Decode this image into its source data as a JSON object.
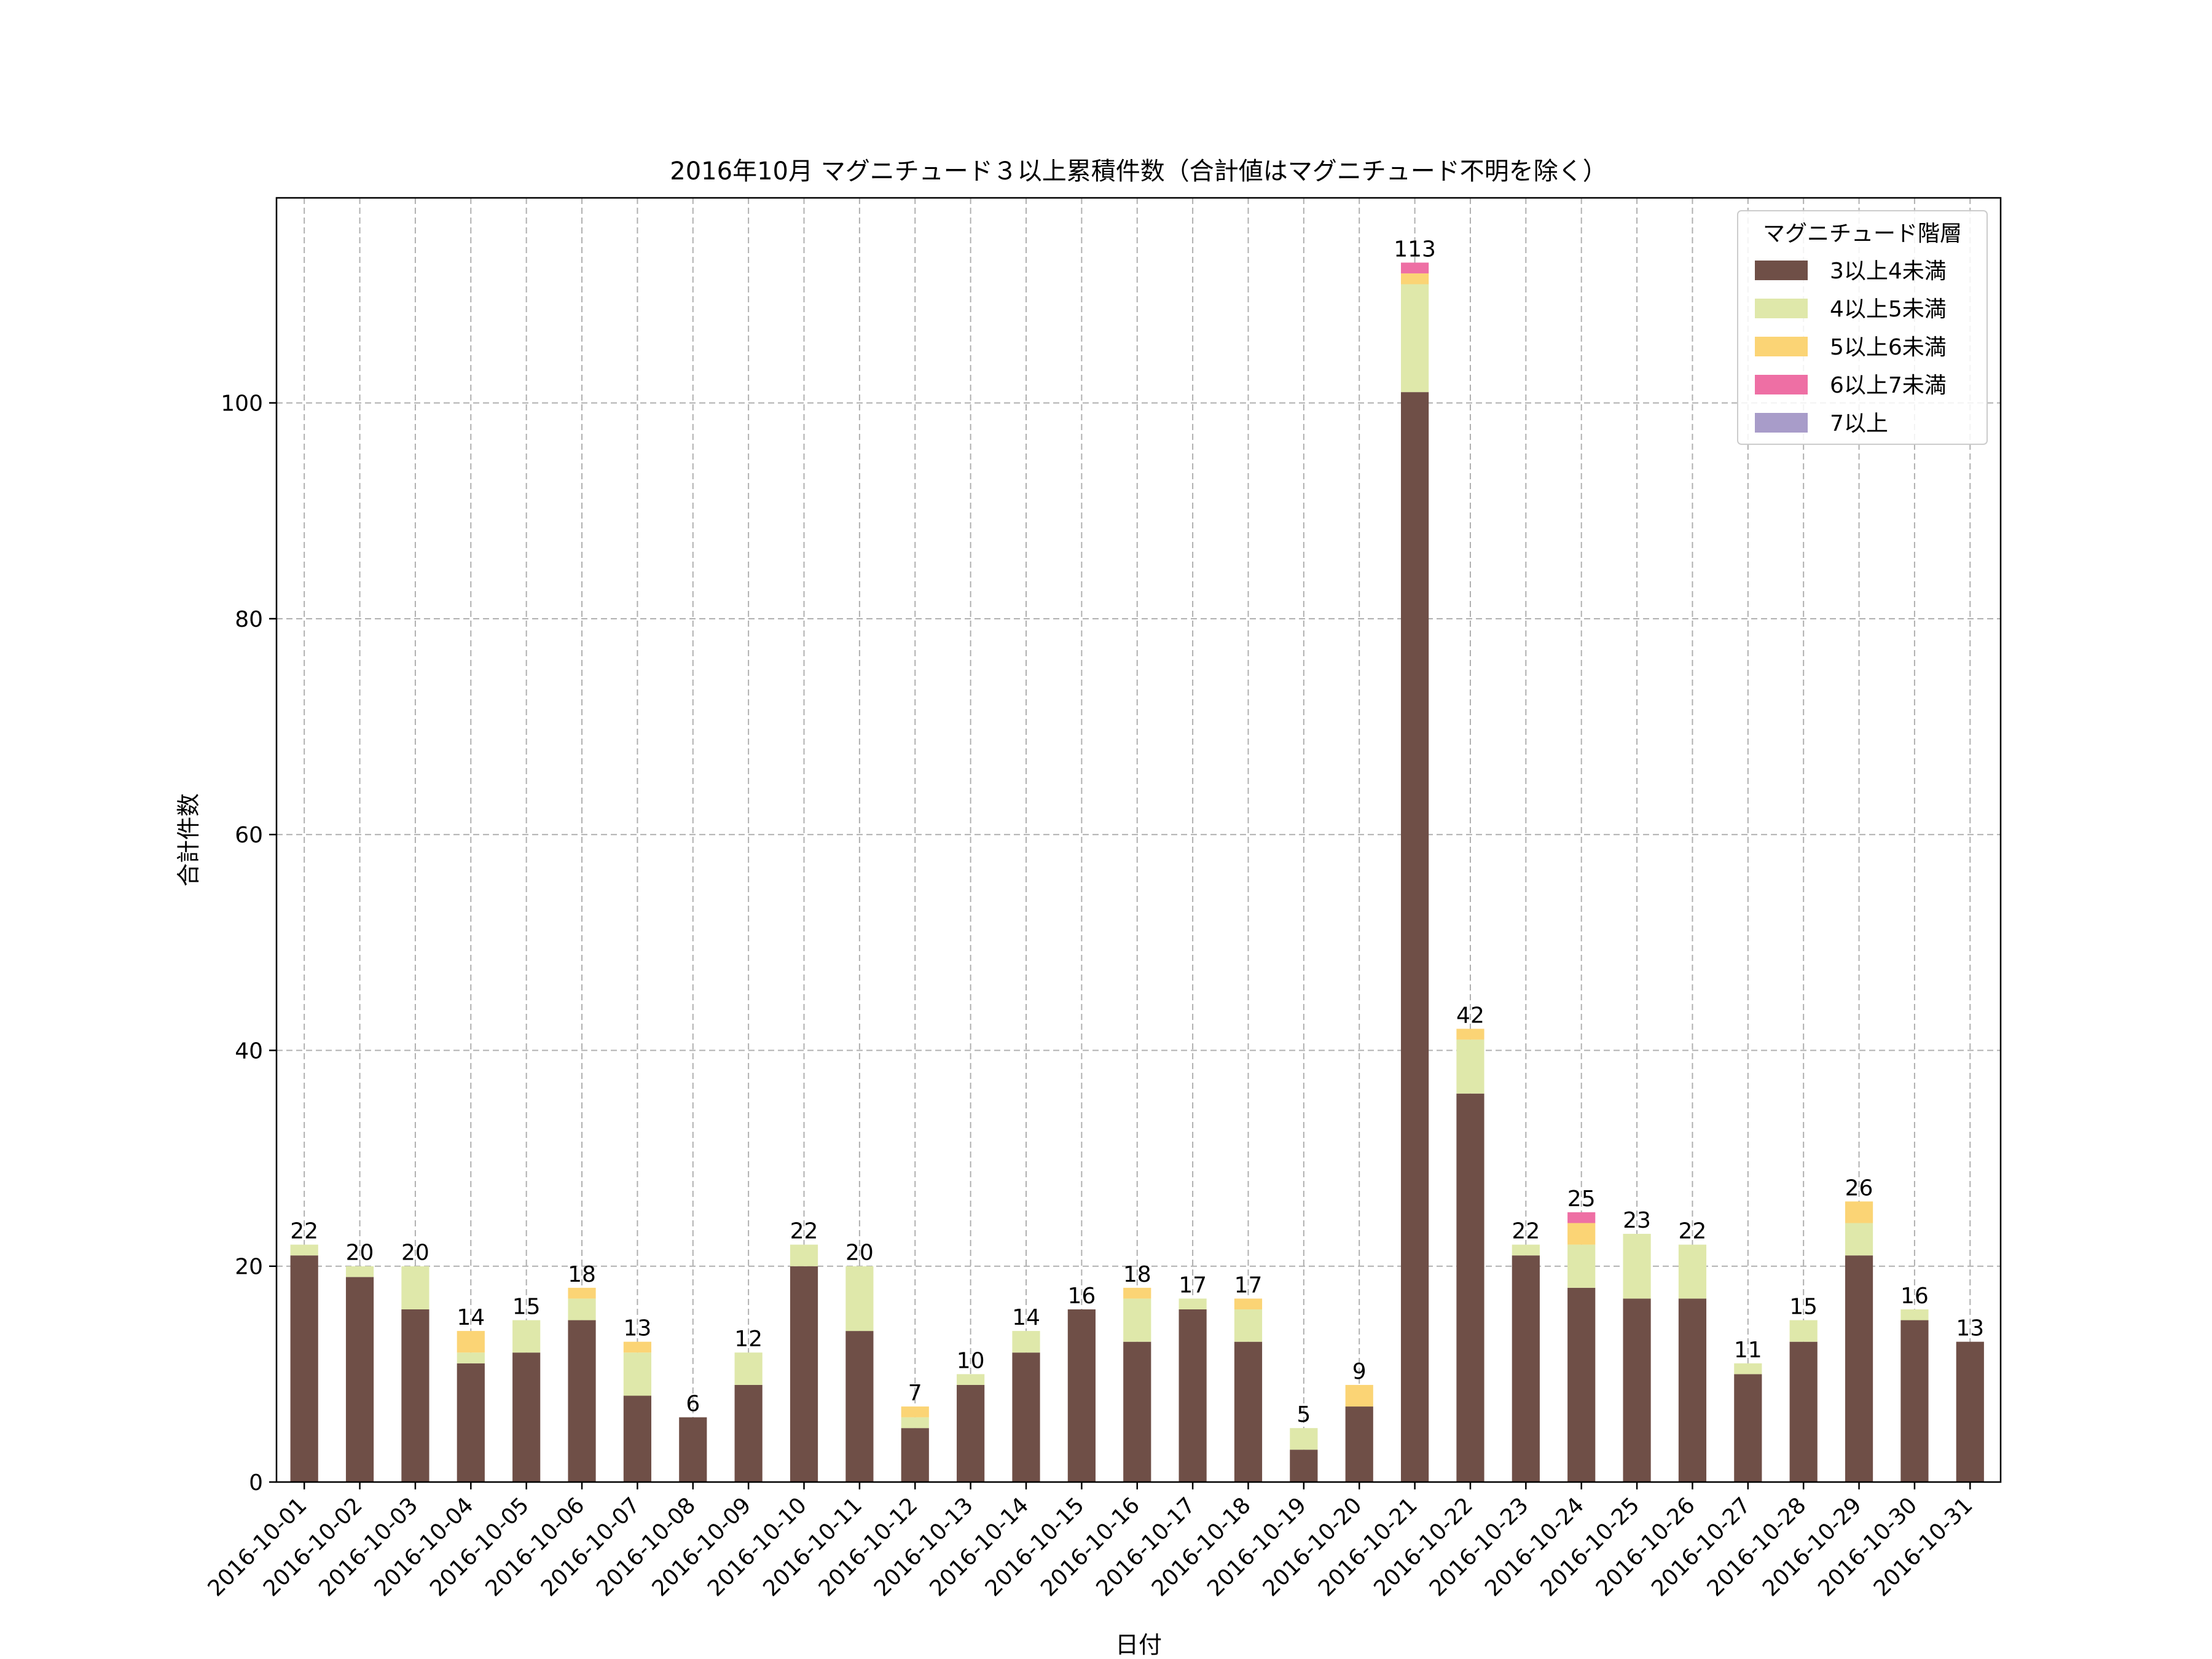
{
  "chart_data": {
    "type": "bar",
    "stacked": true,
    "title": "2016年10月 マグニチュード３以上累積件数（合計値はマグニチュード不明を除く）",
    "xlabel": "日付",
    "ylabel": "合計件数",
    "ylim": [
      0,
      119
    ],
    "yticks": [
      "0",
      "20",
      "40",
      "60",
      "80",
      "100"
    ],
    "grid": true,
    "legend_title": "マグニチュード階層",
    "legend_position": "top-right",
    "categories": [
      "2016-10-01",
      "2016-10-02",
      "2016-10-03",
      "2016-10-04",
      "2016-10-05",
      "2016-10-06",
      "2016-10-07",
      "2016-10-08",
      "2016-10-09",
      "2016-10-10",
      "2016-10-11",
      "2016-10-12",
      "2016-10-13",
      "2016-10-14",
      "2016-10-15",
      "2016-10-16",
      "2016-10-17",
      "2016-10-18",
      "2016-10-19",
      "2016-10-20",
      "2016-10-21",
      "2016-10-22",
      "2016-10-23",
      "2016-10-24",
      "2016-10-25",
      "2016-10-26",
      "2016-10-27",
      "2016-10-28",
      "2016-10-29",
      "2016-10-30",
      "2016-10-31"
    ],
    "series": [
      {
        "name": "3以上4未満",
        "color": "#6f4f47",
        "values": [
          21,
          19,
          16,
          11,
          12,
          15,
          8,
          6,
          9,
          20,
          14,
          5,
          9,
          12,
          16,
          13,
          16,
          13,
          3,
          7,
          101,
          36,
          21,
          18,
          17,
          17,
          10,
          13,
          21,
          15,
          13
        ]
      },
      {
        "name": "4以上5未満",
        "color": "#dfe8aa",
        "values": [
          1,
          1,
          4,
          1,
          3,
          2,
          4,
          0,
          3,
          2,
          6,
          1,
          1,
          2,
          0,
          4,
          1,
          3,
          2,
          0,
          10,
          5,
          1,
          4,
          6,
          5,
          1,
          2,
          3,
          1,
          0
        ]
      },
      {
        "name": "5以上6未満",
        "color": "#fbd475",
        "values": [
          0,
          0,
          0,
          2,
          0,
          1,
          1,
          0,
          0,
          0,
          0,
          1,
          0,
          0,
          0,
          1,
          0,
          1,
          0,
          2,
          1,
          1,
          0,
          2,
          0,
          0,
          0,
          0,
          2,
          0,
          0
        ]
      },
      {
        "name": "6以上7未満",
        "color": "#ee6fa4",
        "values": [
          0,
          0,
          0,
          0,
          0,
          0,
          0,
          0,
          0,
          0,
          0,
          0,
          0,
          0,
          0,
          0,
          0,
          0,
          0,
          0,
          1,
          0,
          0,
          1,
          0,
          0,
          0,
          0,
          0,
          0,
          0
        ]
      },
      {
        "name": "7以上",
        "color": "#a89cc9",
        "values": [
          0,
          0,
          0,
          0,
          0,
          0,
          0,
          0,
          0,
          0,
          0,
          0,
          0,
          0,
          0,
          0,
          0,
          0,
          0,
          0,
          0,
          0,
          0,
          0,
          0,
          0,
          0,
          0,
          0,
          0,
          0
        ]
      }
    ],
    "totals": [
      "22",
      "20",
      "20",
      "14",
      "15",
      "18",
      "13",
      "6",
      "12",
      "22",
      "20",
      "7",
      "10",
      "14",
      "16",
      "18",
      "17",
      "17",
      "5",
      "9",
      "113",
      "42",
      "22",
      "25",
      "23",
      "22",
      "11",
      "15",
      "26",
      "16",
      "13"
    ]
  }
}
